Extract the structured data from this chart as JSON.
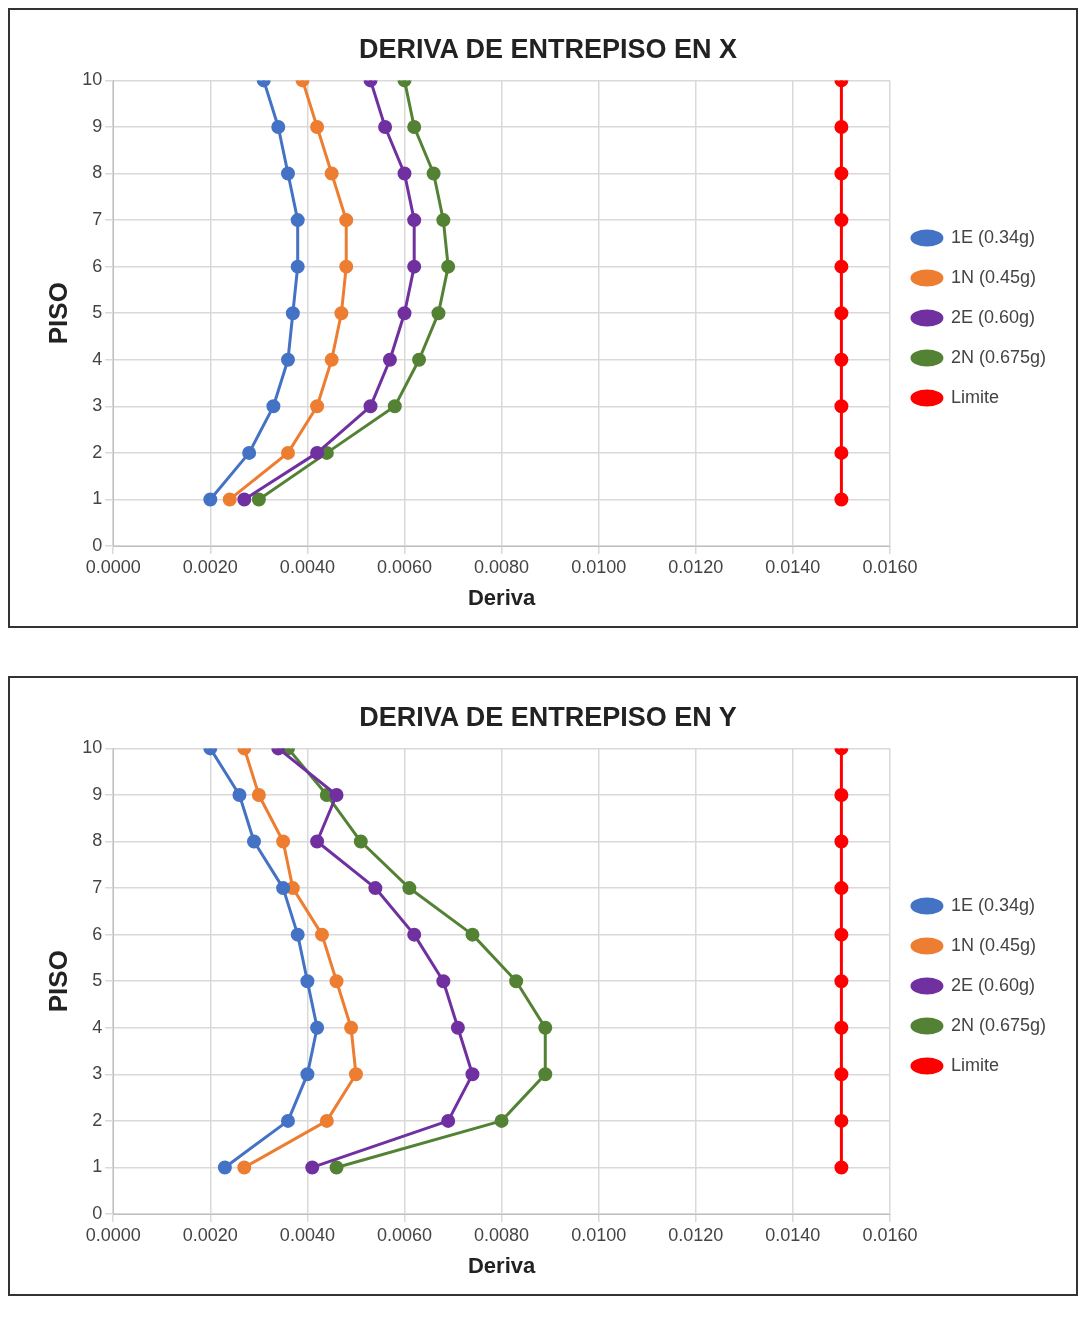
{
  "chart_data": [
    {
      "type": "line",
      "title": "DERIVA DE ENTREPISO EN X",
      "xlabel": "Deriva",
      "ylabel": "PISO",
      "series": [
        {
          "name": "1E (0.34g)",
          "color": "#4472c4",
          "x": [
            0.002,
            0.0028,
            0.0033,
            0.0036,
            0.0037,
            0.0038,
            0.0038,
            0.0036,
            0.0034,
            0.0031
          ],
          "values": [
            1,
            2,
            3,
            4,
            5,
            6,
            7,
            8,
            9,
            10
          ]
        },
        {
          "name": "1N (0.45g)",
          "color": "#ed7d31",
          "x": [
            0.0024,
            0.0036,
            0.0042,
            0.0045,
            0.0047,
            0.0048,
            0.0048,
            0.0045,
            0.0042,
            0.0039
          ],
          "values": [
            1,
            2,
            3,
            4,
            5,
            6,
            7,
            8,
            9,
            10
          ]
        },
        {
          "name": "2E (0.60g)",
          "color": "#7030a0",
          "x": [
            0.0027,
            0.0042,
            0.0053,
            0.0057,
            0.006,
            0.0062,
            0.0062,
            0.006,
            0.0056,
            0.0053
          ],
          "values": [
            1,
            2,
            3,
            4,
            5,
            6,
            7,
            8,
            9,
            10
          ]
        },
        {
          "name": "2N (0.675g)",
          "color": "#548235",
          "x": [
            0.003,
            0.0044,
            0.0058,
            0.0063,
            0.0067,
            0.0069,
            0.0068,
            0.0066,
            0.0062,
            0.006
          ],
          "values": [
            1,
            2,
            3,
            4,
            5,
            6,
            7,
            8,
            9,
            10
          ]
        },
        {
          "name": "Limite",
          "color": "#ff0000",
          "x": [
            0.015,
            0.015,
            0.015,
            0.015,
            0.015,
            0.015,
            0.015,
            0.015,
            0.015,
            0.015
          ],
          "values": [
            1,
            2,
            3,
            4,
            5,
            6,
            7,
            8,
            9,
            10
          ]
        }
      ],
      "xlim": [
        0,
        0.016
      ],
      "xticks": [
        {
          "value": 0,
          "label": "0.0000"
        },
        {
          "value": 0.002,
          "label": "0.0020"
        },
        {
          "value": 0.004,
          "label": "0.0040"
        },
        {
          "value": 0.006,
          "label": "0.0060"
        },
        {
          "value": 0.008,
          "label": "0.0080"
        },
        {
          "value": 0.01,
          "label": "0.0100"
        },
        {
          "value": 0.012,
          "label": "0.0120"
        },
        {
          "value": 0.014,
          "label": "0.0140"
        },
        {
          "value": 0.016,
          "label": "0.0160"
        }
      ],
      "ylim": [
        0,
        10
      ],
      "yticks": [
        0,
        1,
        2,
        3,
        4,
        5,
        6,
        7,
        8,
        9,
        10
      ],
      "grid": true,
      "legend": "right",
      "marker": "circle",
      "line_style": "solid"
    },
    {
      "type": "line",
      "title": "DERIVA DE ENTREPISO EN Y",
      "xlabel": "Deriva",
      "ylabel": "PISO",
      "series": [
        {
          "name": "1E (0.34g)",
          "color": "#4472c4",
          "x": [
            0.0023,
            0.0036,
            0.004,
            0.0042,
            0.004,
            0.0038,
            0.0035,
            0.0029,
            0.0026,
            0.002
          ],
          "values": [
            1,
            2,
            3,
            4,
            5,
            6,
            7,
            8,
            9,
            10
          ]
        },
        {
          "name": "1N (0.45g)",
          "color": "#ed7d31",
          "x": [
            0.0027,
            0.0044,
            0.005,
            0.0049,
            0.0046,
            0.0043,
            0.0037,
            0.0035,
            0.003,
            0.0027
          ],
          "values": [
            1,
            2,
            3,
            4,
            5,
            6,
            7,
            8,
            9,
            10
          ]
        },
        {
          "name": "2E (0.60g)",
          "color": "#7030a0",
          "x": [
            0.0041,
            0.0069,
            0.0074,
            0.0071,
            0.0068,
            0.0062,
            0.0054,
            0.0042,
            0.0046,
            0.0034
          ],
          "values": [
            1,
            2,
            3,
            4,
            5,
            6,
            7,
            8,
            9,
            10
          ]
        },
        {
          "name": "2N (0.675g)",
          "color": "#548235",
          "x": [
            0.0046,
            0.008,
            0.0089,
            0.0089,
            0.0083,
            0.0074,
            0.0061,
            0.0051,
            0.0044,
            0.0036
          ],
          "values": [
            1,
            2,
            3,
            4,
            5,
            6,
            7,
            8,
            9,
            10
          ]
        },
        {
          "name": "Limite",
          "color": "#ff0000",
          "x": [
            0.015,
            0.015,
            0.015,
            0.015,
            0.015,
            0.015,
            0.015,
            0.015,
            0.015,
            0.015
          ],
          "values": [
            1,
            2,
            3,
            4,
            5,
            6,
            7,
            8,
            9,
            10
          ]
        }
      ],
      "xlim": [
        0,
        0.016
      ],
      "xticks": [
        {
          "value": 0,
          "label": "0.0000"
        },
        {
          "value": 0.002,
          "label": "0.0020"
        },
        {
          "value": 0.004,
          "label": "0.0040"
        },
        {
          "value": 0.006,
          "label": "0.0060"
        },
        {
          "value": 0.008,
          "label": "0.0080"
        },
        {
          "value": 0.01,
          "label": "0.0100"
        },
        {
          "value": 0.012,
          "label": "0.0120"
        },
        {
          "value": 0.014,
          "label": "0.0140"
        },
        {
          "value": 0.016,
          "label": "0.0160"
        }
      ],
      "ylim": [
        0,
        10
      ],
      "yticks": [
        0,
        1,
        2,
        3,
        4,
        5,
        6,
        7,
        8,
        9,
        10
      ],
      "grid": true,
      "legend": "right",
      "marker": "circle",
      "line_style": "solid"
    }
  ]
}
